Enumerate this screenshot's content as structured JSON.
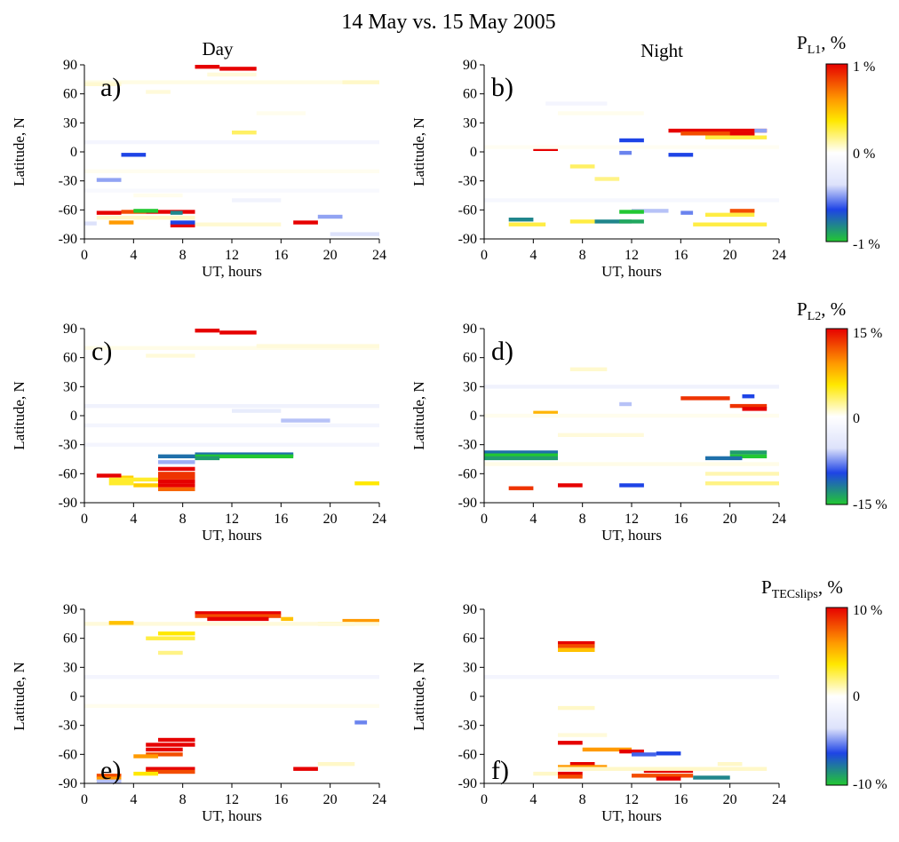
{
  "figure": {
    "title": "14 May vs. 15 May 2005",
    "column_titles": [
      "Day",
      "Night"
    ]
  },
  "chart_data": [
    {
      "type": "heatmap",
      "panel": "a)",
      "column": "Day",
      "xlabel": "UT, hours",
      "ylabel": "Latitude, N",
      "xlim": [
        0,
        24
      ],
      "ylim": [
        -90,
        90
      ],
      "xticks": [
        0,
        4,
        8,
        12,
        16,
        20,
        24
      ],
      "yticks": [
        90,
        60,
        30,
        0,
        -30,
        -60,
        -90
      ],
      "colorbar": "pl1",
      "cells": [
        [
          9,
          11,
          88,
          1.0
        ],
        [
          11,
          14,
          86,
          1.0
        ],
        [
          1,
          3,
          -63,
          1.0
        ],
        [
          3,
          5,
          -62,
          0.9
        ],
        [
          5,
          9,
          -62,
          1.0
        ],
        [
          4,
          6,
          -61,
          -1.0
        ],
        [
          7,
          8,
          -63,
          -0.9
        ],
        [
          2,
          4,
          -73,
          0.8
        ],
        [
          7,
          9,
          -76,
          1.0
        ],
        [
          7,
          9,
          -73,
          -0.8
        ],
        [
          17,
          19,
          -73,
          1.0
        ],
        [
          19,
          21,
          -67,
          -0.5
        ],
        [
          3,
          5,
          -3,
          -0.8
        ],
        [
          1,
          3,
          -29,
          -0.5
        ],
        [
          0,
          24,
          72,
          0.15
        ],
        [
          0,
          3,
          70,
          0.25
        ],
        [
          21,
          24,
          72,
          0.3
        ],
        [
          5,
          7,
          62,
          0.2
        ],
        [
          10,
          14,
          80,
          0.2
        ],
        [
          12,
          14,
          20,
          0.45
        ],
        [
          1,
          9,
          -68,
          0.3
        ],
        [
          9,
          16,
          -75,
          0.25
        ],
        [
          0,
          1,
          -74,
          -0.3
        ],
        [
          20,
          24,
          -85,
          -0.3
        ],
        [
          0,
          24,
          10,
          -0.1
        ],
        [
          0,
          24,
          -20,
          0.08
        ],
        [
          4,
          8,
          -45,
          0.1
        ],
        [
          12,
          16,
          -50,
          -0.12
        ],
        [
          14,
          18,
          40,
          0.1
        ],
        [
          0,
          24,
          -40,
          -0.06
        ]
      ]
    },
    {
      "type": "heatmap",
      "panel": "b)",
      "column": "Night",
      "xlabel": "UT, hours",
      "ylabel": "Latitude, N",
      "xlim": [
        0,
        24
      ],
      "ylim": [
        -90,
        90
      ],
      "xticks": [
        0,
        4,
        8,
        12,
        16,
        20,
        24
      ],
      "yticks": [
        90,
        60,
        30,
        0,
        -30,
        -60,
        -90
      ],
      "colorbar": "pl1",
      "cells": [
        [
          15,
          23,
          22,
          1.0
        ],
        [
          16,
          22,
          19,
          0.9
        ],
        [
          20,
          22,
          19,
          1.0
        ],
        [
          22,
          23,
          22,
          -0.5
        ],
        [
          4,
          6,
          3,
          1.0
        ],
        [
          11,
          13,
          12,
          -0.8
        ],
        [
          11,
          12,
          -1,
          -0.6
        ],
        [
          15,
          17,
          -3,
          -0.8
        ],
        [
          9,
          12,
          -72,
          -0.9
        ],
        [
          12,
          15,
          -61,
          -0.4
        ],
        [
          11,
          13,
          -62,
          -1.0
        ],
        [
          11,
          13,
          -72,
          -0.95
        ],
        [
          2,
          4,
          -70,
          -0.9
        ],
        [
          16,
          17,
          -63,
          -0.6
        ],
        [
          20,
          22,
          -61,
          0.9
        ],
        [
          18,
          22,
          -65,
          0.5
        ],
        [
          17,
          23,
          -75,
          0.5
        ],
        [
          2,
          5,
          -75,
          0.5
        ],
        [
          7,
          9,
          -72,
          0.5
        ],
        [
          7,
          9,
          -15,
          0.45
        ],
        [
          9,
          11,
          -28,
          0.4
        ],
        [
          18,
          23,
          15,
          0.5
        ],
        [
          6,
          13,
          40,
          0.1
        ],
        [
          5,
          10,
          50,
          -0.1
        ],
        [
          0,
          24,
          -50,
          -0.08
        ],
        [
          0,
          24,
          5,
          0.07
        ]
      ]
    },
    {
      "type": "heatmap",
      "panel": "c)",
      "column": "Day",
      "xlabel": "UT, hours",
      "ylabel": "Latitude, N",
      "xlim": [
        0,
        24
      ],
      "ylim": [
        -90,
        90
      ],
      "xticks": [
        0,
        4,
        8,
        12,
        16,
        20,
        24
      ],
      "yticks": [
        90,
        60,
        30,
        0,
        -30,
        -60,
        -90
      ],
      "colorbar": "pl2",
      "cells": [
        [
          9,
          11,
          88,
          15
        ],
        [
          11,
          14,
          86,
          15
        ],
        [
          6,
          9,
          -42,
          -13
        ],
        [
          9,
          17,
          -40,
          -13
        ],
        [
          9,
          17,
          -42,
          -15
        ],
        [
          9,
          11,
          -44,
          -14
        ],
        [
          6,
          9,
          -48,
          -7
        ],
        [
          6,
          9,
          -55,
          15
        ],
        [
          6,
          9,
          -60,
          14
        ],
        [
          6,
          9,
          -64,
          14
        ],
        [
          6,
          9,
          -68,
          15
        ],
        [
          6,
          9,
          -72,
          15
        ],
        [
          6,
          9,
          -76,
          13
        ],
        [
          1,
          3,
          -62,
          15
        ],
        [
          3,
          4,
          -64,
          10
        ],
        [
          2,
          6,
          -66,
          8
        ],
        [
          4,
          6,
          -72,
          10
        ],
        [
          2,
          4,
          -70,
          8
        ],
        [
          22,
          24,
          -70,
          9
        ],
        [
          16,
          20,
          -5,
          -6
        ],
        [
          12,
          16,
          5,
          -3
        ],
        [
          0,
          24,
          70,
          2
        ],
        [
          5,
          9,
          62,
          3
        ],
        [
          0,
          24,
          10,
          -2
        ],
        [
          0,
          24,
          -10,
          -1.5
        ],
        [
          14,
          24,
          72,
          3
        ],
        [
          0,
          24,
          -30,
          -1.5
        ]
      ]
    },
    {
      "type": "heatmap",
      "panel": "d)",
      "column": "Night",
      "xlabel": "UT, hours",
      "ylabel": "Latitude, N",
      "xlim": [
        0,
        24
      ],
      "ylim": [
        -90,
        90
      ],
      "xticks": [
        0,
        4,
        8,
        12,
        16,
        20,
        24
      ],
      "yticks": [
        90,
        60,
        30,
        0,
        -30,
        -60,
        -90
      ],
      "colorbar": "pl2",
      "cells": [
        [
          0,
          6,
          -38,
          -13
        ],
        [
          0,
          6,
          -41,
          -15
        ],
        [
          0,
          6,
          -44,
          -14
        ],
        [
          20,
          23,
          -38,
          -14
        ],
        [
          20,
          23,
          -42,
          -15
        ],
        [
          18,
          21,
          -44,
          -13
        ],
        [
          16,
          20,
          18,
          14
        ],
        [
          20,
          23,
          10,
          14
        ],
        [
          21,
          23,
          7,
          15
        ],
        [
          21,
          22,
          20,
          -12
        ],
        [
          2,
          4,
          -75,
          14
        ],
        [
          6,
          8,
          -72,
          15
        ],
        [
          11,
          13,
          -72,
          -12
        ],
        [
          11,
          12,
          12,
          -6
        ],
        [
          4,
          6,
          3,
          11
        ],
        [
          7,
          10,
          48,
          4
        ],
        [
          18,
          24,
          -60,
          5
        ],
        [
          18,
          24,
          -70,
          6
        ],
        [
          0,
          24,
          -50,
          2
        ],
        [
          0,
          24,
          30,
          -2
        ],
        [
          0,
          24,
          0,
          1.5
        ],
        [
          6,
          13,
          -20,
          3
        ]
      ]
    },
    {
      "type": "heatmap",
      "panel": "e)",
      "column": "Day",
      "xlabel": "UT, hours",
      "ylabel": "Latitude, N",
      "xlim": [
        0,
        24
      ],
      "ylim": [
        -90,
        90
      ],
      "xticks": [
        0,
        4,
        8,
        12,
        16,
        20,
        24
      ],
      "yticks": [
        90,
        60,
        30,
        0,
        -30,
        -60,
        -90
      ],
      "colorbar": "ptec",
      "cells": [
        [
          9,
          16,
          86,
          10
        ],
        [
          9,
          16,
          83,
          9
        ],
        [
          10,
          15,
          80,
          10
        ],
        [
          16,
          17,
          80,
          7
        ],
        [
          21,
          24,
          78,
          8
        ],
        [
          19,
          22,
          75,
          5
        ],
        [
          0,
          24,
          75,
          2
        ],
        [
          2,
          4,
          76,
          7
        ],
        [
          5,
          9,
          60,
          5
        ],
        [
          6,
          9,
          65,
          6
        ],
        [
          6,
          8,
          45,
          4
        ],
        [
          6,
          9,
          -45,
          10
        ],
        [
          5,
          9,
          -50,
          10
        ],
        [
          5,
          8,
          -55,
          10
        ],
        [
          5,
          8,
          -60,
          9
        ],
        [
          4,
          6,
          -62,
          8
        ],
        [
          5,
          9,
          -75,
          10
        ],
        [
          5,
          9,
          -78,
          9
        ],
        [
          4,
          6,
          -80,
          6
        ],
        [
          1,
          3,
          -82,
          9
        ],
        [
          1,
          3,
          -85,
          8
        ],
        [
          1,
          3,
          -88,
          -4
        ],
        [
          17,
          19,
          -75,
          10
        ],
        [
          22,
          23,
          -27,
          -6
        ],
        [
          19,
          22,
          -70,
          3
        ],
        [
          0,
          24,
          -10,
          1
        ],
        [
          0,
          24,
          20,
          -1
        ]
      ]
    },
    {
      "type": "heatmap",
      "panel": "f)",
      "column": "Night",
      "xlabel": "UT, hours",
      "ylabel": "Latitude, N",
      "xlim": [
        0,
        24
      ],
      "ylim": [
        -90,
        90
      ],
      "xticks": [
        0,
        4,
        8,
        12,
        16,
        20,
        24
      ],
      "yticks": [
        90,
        60,
        30,
        0,
        -30,
        -60,
        -90
      ],
      "colorbar": "ptec",
      "cells": [
        [
          6,
          9,
          55,
          10
        ],
        [
          6,
          9,
          52,
          9
        ],
        [
          6,
          9,
          48,
          7
        ],
        [
          6,
          8,
          -48,
          10
        ],
        [
          8,
          12,
          -55,
          8
        ],
        [
          11,
          13,
          -57,
          10
        ],
        [
          12,
          14,
          -60,
          -7
        ],
        [
          14,
          16,
          -59,
          -8
        ],
        [
          7,
          9,
          -70,
          10
        ],
        [
          6,
          10,
          -73,
          8
        ],
        [
          6,
          8,
          -80,
          10
        ],
        [
          6,
          8,
          -83,
          9
        ],
        [
          13,
          17,
          -77,
          10
        ],
        [
          12,
          17,
          -82,
          9
        ],
        [
          14,
          16,
          -85,
          10
        ],
        [
          17,
          20,
          -84,
          -9
        ],
        [
          19,
          21,
          -70,
          3
        ],
        [
          6,
          23,
          -75,
          3
        ],
        [
          4,
          6,
          -80,
          3
        ],
        [
          6,
          9,
          -12,
          3
        ],
        [
          6,
          10,
          -40,
          2
        ],
        [
          0,
          24,
          20,
          -1
        ]
      ]
    }
  ],
  "colorbars": {
    "pl1": {
      "title_main": "P",
      "title_sub": "L1",
      "title_suffix": ", %",
      "min": -1,
      "max": 1,
      "labels": {
        "top": "1 %",
        "middle": "0 %",
        "bottom": "-1 %"
      }
    },
    "pl2": {
      "title_main": "P",
      "title_sub": "L2",
      "title_suffix": ", %",
      "min": -15,
      "max": 15,
      "labels": {
        "top": "15 %",
        "middle": "0",
        "bottom": "-15 %"
      }
    },
    "ptec": {
      "title_main": "P",
      "title_sub": "TECslips",
      "title_suffix": ", %",
      "min": -10,
      "max": 10,
      "labels": {
        "top": "10 %",
        "middle": "0",
        "bottom": "-10 %"
      }
    }
  },
  "colors": {
    "neg_end": "#22c832",
    "neg_mid": "#1e44e6",
    "neg_light": "#dde2fb",
    "zero": "#ffffff",
    "pos_light": "#fff8c8",
    "pos_mid": "#ffe800",
    "pos_high": "#ff9a00",
    "pos_end": "#e60000"
  }
}
